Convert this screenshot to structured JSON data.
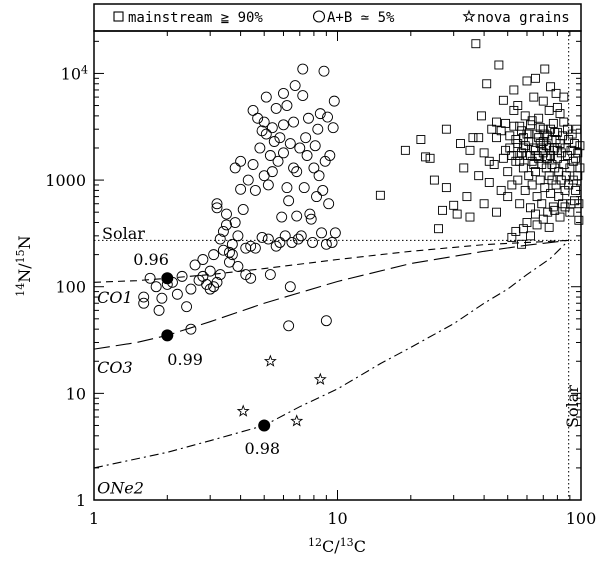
{
  "chart_data": {
    "type": "scatter",
    "xscale": "log",
    "yscale": "log",
    "xlim": [
      1,
      100
    ],
    "ylim": [
      1,
      25000
    ],
    "xlabel_num": "12",
    "xlabel_text1": "C/",
    "xlabel_den": "13",
    "xlabel_text2": "C",
    "ylabel_num": "14",
    "ylabel_text1": "N/",
    "ylabel_den": "15",
    "ylabel_text2": "N",
    "xticks": [
      {
        "value": 1,
        "label": "1"
      },
      {
        "value": 10,
        "label": "10"
      },
      {
        "value": 100,
        "label": "100"
      }
    ],
    "yticks": [
      {
        "value": 1,
        "label": "1"
      },
      {
        "value": 10,
        "label": "10"
      },
      {
        "value": 100,
        "label": "100"
      },
      {
        "value": 1000,
        "label": "1000"
      }
    ],
    "ytick_10k": {
      "value": 10000,
      "base": "10",
      "exp": "4"
    },
    "legend": {
      "placement": "top",
      "mainstream": "mainstream ≧ 90%",
      "ab": "A+B ≃ 5%",
      "nova": "nova grains"
    },
    "solar_x": 89,
    "solar_y": 272,
    "solar_label_h": "Solar",
    "solar_label_v": "Solar",
    "curves": [
      {
        "name": "CO1",
        "dash": "7,5",
        "points": [
          [
            1,
            110
          ],
          [
            1.5,
            114
          ],
          [
            2,
            120
          ],
          [
            3,
            130
          ],
          [
            5,
            148
          ],
          [
            10,
            180
          ],
          [
            20,
            215
          ],
          [
            40,
            248
          ],
          [
            60,
            260
          ],
          [
            89,
            272
          ]
        ]
      },
      {
        "name": "CO3",
        "dash": "16,6",
        "points": [
          [
            1,
            26
          ],
          [
            1.5,
            30
          ],
          [
            2,
            35
          ],
          [
            3,
            47
          ],
          [
            5,
            70
          ],
          [
            10,
            112
          ],
          [
            20,
            165
          ],
          [
            40,
            215
          ],
          [
            60,
            245
          ],
          [
            89,
            272
          ]
        ]
      },
      {
        "name": "ONe2",
        "dash": "9,4,2,4",
        "points": [
          [
            1,
            2.0
          ],
          [
            2,
            2.8
          ],
          [
            3,
            3.6
          ],
          [
            5,
            5.0
          ],
          [
            7,
            7.5
          ],
          [
            10,
            11
          ],
          [
            15,
            19
          ],
          [
            20,
            27
          ],
          [
            30,
            45
          ],
          [
            40,
            70
          ],
          [
            50,
            95
          ],
          [
            60,
            130
          ],
          [
            75,
            185
          ],
          [
            89,
            272
          ]
        ]
      }
    ],
    "curve_labels": [
      {
        "text": "CO1",
        "x": 1.03,
        "y": 70
      },
      {
        "text": "CO3",
        "x": 1.03,
        "y": 15.5
      },
      {
        "text": "ONe2",
        "x": 1.03,
        "y": 1.15
      }
    ],
    "marked_points": [
      {
        "x": 2.0,
        "y": 120,
        "label": "0.96",
        "lx": 1.45,
        "ly": 160
      },
      {
        "x": 2.0,
        "y": 35,
        "label": "0.99",
        "lx": 2.0,
        "ly": 18.5
      },
      {
        "x": 5.0,
        "y": 5.0,
        "label": "0.98",
        "lx": 4.15,
        "ly": 2.7
      }
    ],
    "nova_grains": [
      [
        5.3,
        20
      ],
      [
        8.5,
        13.5
      ],
      [
        4.1,
        6.8
      ],
      [
        6.8,
        5.5
      ]
    ],
    "ab_grains": [
      [
        1.6,
        70
      ],
      [
        1.6,
        80
      ],
      [
        1.7,
        120
      ],
      [
        1.8,
        100
      ],
      [
        1.85,
        60
      ],
      [
        1.9,
        78
      ],
      [
        2.0,
        105
      ],
      [
        2.1,
        110
      ],
      [
        2.2,
        85
      ],
      [
        2.3,
        125
      ],
      [
        2.4,
        65
      ],
      [
        2.5,
        40
      ],
      [
        2.5,
        95
      ],
      [
        2.6,
        160
      ],
      [
        2.7,
        115
      ],
      [
        2.8,
        125
      ],
      [
        2.8,
        180
      ],
      [
        2.9,
        105
      ],
      [
        3.0,
        95
      ],
      [
        3.0,
        140
      ],
      [
        3.1,
        100
      ],
      [
        3.1,
        200
      ],
      [
        3.2,
        110
      ],
      [
        3.2,
        550
      ],
      [
        3.2,
        600
      ],
      [
        3.3,
        130
      ],
      [
        3.3,
        280
      ],
      [
        3.4,
        220
      ],
      [
        3.4,
        330
      ],
      [
        3.5,
        380
      ],
      [
        3.5,
        480
      ],
      [
        3.6,
        170
      ],
      [
        3.6,
        210
      ],
      [
        3.7,
        200
      ],
      [
        3.7,
        250
      ],
      [
        3.8,
        1300
      ],
      [
        3.8,
        400
      ],
      [
        3.9,
        155
      ],
      [
        3.9,
        300
      ],
      [
        4.0,
        820
      ],
      [
        4.0,
        1500
      ],
      [
        4.1,
        530
      ],
      [
        4.2,
        130
      ],
      [
        4.2,
        230
      ],
      [
        4.3,
        1000
      ],
      [
        4.4,
        120
      ],
      [
        4.4,
        240
      ],
      [
        4.5,
        1400
      ],
      [
        4.5,
        4500
      ],
      [
        4.6,
        230
      ],
      [
        4.6,
        800
      ],
      [
        4.7,
        3800
      ],
      [
        4.8,
        2000
      ],
      [
        4.9,
        290
      ],
      [
        5.0,
        1100
      ],
      [
        5.0,
        3500
      ],
      [
        5.1,
        6000
      ],
      [
        5.1,
        2700
      ],
      [
        5.2,
        280
      ],
      [
        5.2,
        900
      ],
      [
        5.3,
        130
      ],
      [
        5.3,
        1700
      ],
      [
        5.4,
        3100
      ],
      [
        5.5,
        2300
      ],
      [
        5.6,
        240
      ],
      [
        5.6,
        4700
      ],
      [
        5.7,
        1500
      ],
      [
        5.8,
        260
      ],
      [
        5.8,
        2500
      ],
      [
        5.9,
        450
      ],
      [
        6.0,
        1800
      ],
      [
        6.0,
        3300
      ],
      [
        6.1,
        300
      ],
      [
        6.2,
        850
      ],
      [
        6.2,
        5000
      ],
      [
        6.3,
        43
      ],
      [
        6.3,
        640
      ],
      [
        6.4,
        100
      ],
      [
        6.4,
        2200
      ],
      [
        6.5,
        260
      ],
      [
        6.6,
        1300
      ],
      [
        6.6,
        3500
      ],
      [
        6.7,
        7700
      ],
      [
        6.8,
        460
      ],
      [
        6.8,
        1200
      ],
      [
        6.9,
        280
      ],
      [
        7.0,
        2000
      ],
      [
        7.1,
        300
      ],
      [
        7.2,
        11000
      ],
      [
        7.2,
        6200
      ],
      [
        7.3,
        850
      ],
      [
        7.4,
        2500
      ],
      [
        7.5,
        1700
      ],
      [
        7.6,
        3800
      ],
      [
        7.7,
        480
      ],
      [
        7.8,
        430
      ],
      [
        7.9,
        260
      ],
      [
        8.0,
        1300
      ],
      [
        8.1,
        2100
      ],
      [
        8.2,
        700
      ],
      [
        8.3,
        3000
      ],
      [
        8.4,
        1100
      ],
      [
        8.5,
        4200
      ],
      [
        8.6,
        320
      ],
      [
        8.7,
        800
      ],
      [
        8.8,
        10500
      ],
      [
        8.9,
        1500
      ],
      [
        9.0,
        48
      ],
      [
        9.0,
        250
      ],
      [
        9.1,
        3900
      ],
      [
        9.2,
        600
      ],
      [
        9.3,
        1700
      ],
      [
        9.5,
        260
      ],
      [
        9.6,
        3100
      ],
      [
        9.7,
        5500
      ],
      [
        9.8,
        320
      ],
      [
        6.0,
        6500
      ],
      [
        5.4,
        1200
      ],
      [
        4.9,
        2900
      ]
    ],
    "mainstream_grains": [
      [
        15,
        720
      ],
      [
        19,
        1900
      ],
      [
        22,
        2400
      ],
      [
        23,
        1650
      ],
      [
        24,
        1600
      ],
      [
        25,
        1000
      ],
      [
        26,
        350
      ],
      [
        27,
        520
      ],
      [
        28,
        3000
      ],
      [
        28,
        850
      ],
      [
        30,
        580
      ],
      [
        31,
        480
      ],
      [
        32,
        2200
      ],
      [
        33,
        1300
      ],
      [
        34,
        700
      ],
      [
        35,
        450
      ],
      [
        36,
        2500
      ],
      [
        37,
        19000
      ],
      [
        38,
        1100
      ],
      [
        39,
        4000
      ],
      [
        40,
        600
      ],
      [
        40,
        1800
      ],
      [
        41,
        8000
      ],
      [
        42,
        950
      ],
      [
        43,
        3000
      ],
      [
        44,
        1400
      ],
      [
        45,
        500
      ],
      [
        45,
        2500
      ],
      [
        46,
        12000
      ],
      [
        47,
        800
      ],
      [
        48,
        1600
      ],
      [
        48,
        5600
      ],
      [
        49,
        3400
      ],
      [
        50,
        1200
      ],
      [
        50,
        700
      ],
      [
        51,
        2000
      ],
      [
        52,
        290
      ],
      [
        52,
        900
      ],
      [
        53,
        7000
      ],
      [
        53,
        4500
      ],
      [
        54,
        1500
      ],
      [
        54,
        330
      ],
      [
        55,
        2200
      ],
      [
        55,
        1000
      ],
      [
        56,
        3200
      ],
      [
        56,
        600
      ],
      [
        57,
        1800
      ],
      [
        57,
        250
      ],
      [
        58,
        2500
      ],
      [
        58,
        1300
      ],
      [
        59,
        800
      ],
      [
        59,
        4000
      ],
      [
        60,
        1700
      ],
      [
        60,
        400
      ],
      [
        61,
        2300
      ],
      [
        61,
        1100
      ],
      [
        62,
        3300
      ],
      [
        62,
        550
      ],
      [
        63,
        1500
      ],
      [
        63,
        900
      ],
      [
        64,
        2000
      ],
      [
        64,
        6000
      ],
      [
        65,
        1200
      ],
      [
        65,
        480
      ],
      [
        66,
        2700
      ],
      [
        66,
        700
      ],
      [
        67,
        1600
      ],
      [
        67,
        3800
      ],
      [
        68,
        1000
      ],
      [
        68,
        2200
      ],
      [
        69,
        600
      ],
      [
        69,
        1400
      ],
      [
        70,
        1800
      ],
      [
        70,
        3000
      ],
      [
        71,
        850
      ],
      [
        71,
        11000
      ],
      [
        72,
        2100
      ],
      [
        72,
        1300
      ],
      [
        73,
        500
      ],
      [
        73,
        2600
      ],
      [
        74,
        1100
      ],
      [
        74,
        4500
      ],
      [
        75,
        1700
      ],
      [
        75,
        750
      ],
      [
        76,
        2400
      ],
      [
        76,
        1000
      ],
      [
        77,
        560
      ],
      [
        77,
        3400
      ],
      [
        78,
        1300
      ],
      [
        78,
        2000
      ],
      [
        79,
        900
      ],
      [
        79,
        6500
      ],
      [
        80,
        1600
      ],
      [
        80,
        2800
      ],
      [
        81,
        700
      ],
      [
        81,
        1200
      ],
      [
        82,
        2200
      ],
      [
        82,
        4200
      ],
      [
        83,
        1000
      ],
      [
        83,
        1800
      ],
      [
        84,
        600
      ],
      [
        84,
        2600
      ],
      [
        85,
        1400
      ],
      [
        85,
        3500
      ],
      [
        86,
        800
      ],
      [
        86,
        2000
      ],
      [
        87,
        1100
      ],
      [
        88,
        1700
      ],
      [
        88,
        3000
      ],
      [
        89,
        900
      ],
      [
        89,
        2400
      ],
      [
        90,
        1300
      ],
      [
        91,
        600
      ],
      [
        91,
        1900
      ],
      [
        92,
        2700
      ],
      [
        93,
        1000
      ],
      [
        93,
        1500
      ],
      [
        94,
        2200
      ],
      [
        95,
        800
      ],
      [
        95,
        1600
      ],
      [
        96,
        3000
      ],
      [
        97,
        1100
      ],
      [
        97,
        1800
      ],
      [
        98,
        600
      ],
      [
        99,
        2100
      ],
      [
        99,
        1300
      ],
      [
        45,
        3500
      ],
      [
        47,
        2900
      ],
      [
        49,
        1900
      ],
      [
        51,
        2600
      ],
      [
        53,
        3200
      ],
      [
        55,
        1700
      ],
      [
        57,
        2900
      ],
      [
        59,
        2100
      ],
      [
        61,
        2700
      ],
      [
        63,
        3600
      ],
      [
        65,
        1900
      ],
      [
        67,
        2500
      ],
      [
        69,
        2000
      ],
      [
        71,
        2700
      ],
      [
        73,
        1600
      ],
      [
        75,
        3000
      ],
      [
        77,
        1900
      ],
      [
        79,
        2400
      ],
      [
        52,
        1700
      ],
      [
        54,
        2400
      ],
      [
        56,
        1500
      ],
      [
        58,
        2000
      ],
      [
        60,
        2700
      ],
      [
        62,
        1700
      ],
      [
        64,
        1400
      ],
      [
        66,
        1700
      ],
      [
        68,
        3100
      ],
      [
        70,
        2300
      ],
      [
        72,
        1600
      ],
      [
        74,
        2000
      ],
      [
        76,
        1400
      ],
      [
        78,
        2800
      ],
      [
        80,
        1900
      ],
      [
        55,
        5000
      ],
      [
        60,
        8500
      ],
      [
        65,
        9000
      ],
      [
        70,
        5500
      ],
      [
        75,
        7500
      ],
      [
        80,
        4800
      ],
      [
        85,
        6000
      ],
      [
        58,
        350
      ],
      [
        62,
        300
      ],
      [
        66,
        380
      ],
      [
        70,
        430
      ],
      [
        74,
        360
      ],
      [
        78,
        520
      ],
      [
        82,
        450
      ],
      [
        86,
        560
      ],
      [
        90,
        500
      ],
      [
        94,
        640
      ],
      [
        98,
        420
      ],
      [
        42,
        1500
      ],
      [
        38,
        2500
      ],
      [
        35,
        1900
      ]
    ]
  }
}
